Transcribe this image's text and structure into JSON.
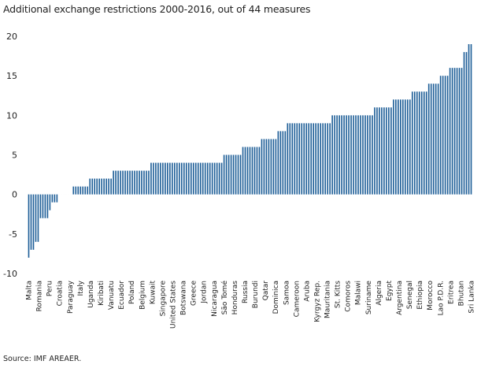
{
  "chart_data": {
    "type": "bar",
    "title": "Additional exchange restrictions 2000-2016, out of 44 measures",
    "xlabel": "",
    "ylabel": "",
    "ylim": [
      -10,
      20
    ],
    "yticks": [
      20,
      15,
      10,
      5,
      0,
      -5,
      -10
    ],
    "labeled_categories": [
      "Malta",
      "Romania",
      "Peru",
      "Croatia",
      "Paraguay",
      "Italy",
      "Uganda",
      "Kiribati",
      "Vanuatu",
      "Ecuador",
      "Poland",
      "Belgium",
      "Kuwait",
      "Singapore",
      "United States",
      "Botswana",
      "Greece",
      "Jordan",
      "Nicaragua",
      "São Tomé",
      "Honduras",
      "Russia",
      "Burundi",
      "Qatar",
      "Dominica",
      "Samoa",
      "Cameroon",
      "Aruba",
      "Kyrgyz Rep.",
      "Mauritania",
      "St. Kitts",
      "Comoros",
      "Malawi",
      "Suriname",
      "Algeria",
      "Egypt",
      "Argentina",
      "Senegal",
      "Ethiopia",
      "Morocco",
      "Lao P.D.R.",
      "Eritrea",
      "Bhutan",
      "Sri Lanka"
    ],
    "values": [
      -8,
      -7,
      -7,
      -6,
      -6,
      -3,
      -3,
      -3,
      -3,
      -2,
      -1,
      -1,
      -1,
      0,
      0,
      0,
      0,
      0,
      0,
      1,
      1,
      1,
      1,
      1,
      1,
      1,
      2,
      2,
      2,
      2,
      2,
      2,
      2,
      2,
      2,
      2,
      3,
      3,
      3,
      3,
      3,
      3,
      3,
      3,
      3,
      3,
      3,
      3,
      3,
      3,
      3,
      3,
      4,
      4,
      4,
      4,
      4,
      4,
      4,
      4,
      4,
      4,
      4,
      4,
      4,
      4,
      4,
      4,
      4,
      4,
      4,
      4,
      4,
      4,
      4,
      4,
      4,
      4,
      4,
      4,
      4,
      4,
      4,
      5,
      5,
      5,
      5,
      5,
      5,
      5,
      5,
      6,
      6,
      6,
      6,
      6,
      6,
      6,
      6,
      7,
      7,
      7,
      7,
      7,
      7,
      7,
      8,
      8,
      8,
      8,
      9,
      9,
      9,
      9,
      9,
      9,
      9,
      9,
      9,
      9,
      9,
      9,
      9,
      9,
      9,
      9,
      9,
      9,
      9,
      10,
      10,
      10,
      10,
      10,
      10,
      10,
      10,
      10,
      10,
      10,
      10,
      10,
      10,
      10,
      10,
      10,
      10,
      11,
      11,
      11,
      11,
      11,
      11,
      11,
      11,
      12,
      12,
      12,
      12,
      12,
      12,
      12,
      12,
      13,
      13,
      13,
      13,
      13,
      13,
      13,
      14,
      14,
      14,
      14,
      14,
      15,
      15,
      15,
      15,
      16,
      16,
      16,
      16,
      16,
      16,
      18,
      18,
      19,
      19
    ],
    "bar_color": "#1f5f98"
  },
  "source": "Source:  IMF AREAER."
}
